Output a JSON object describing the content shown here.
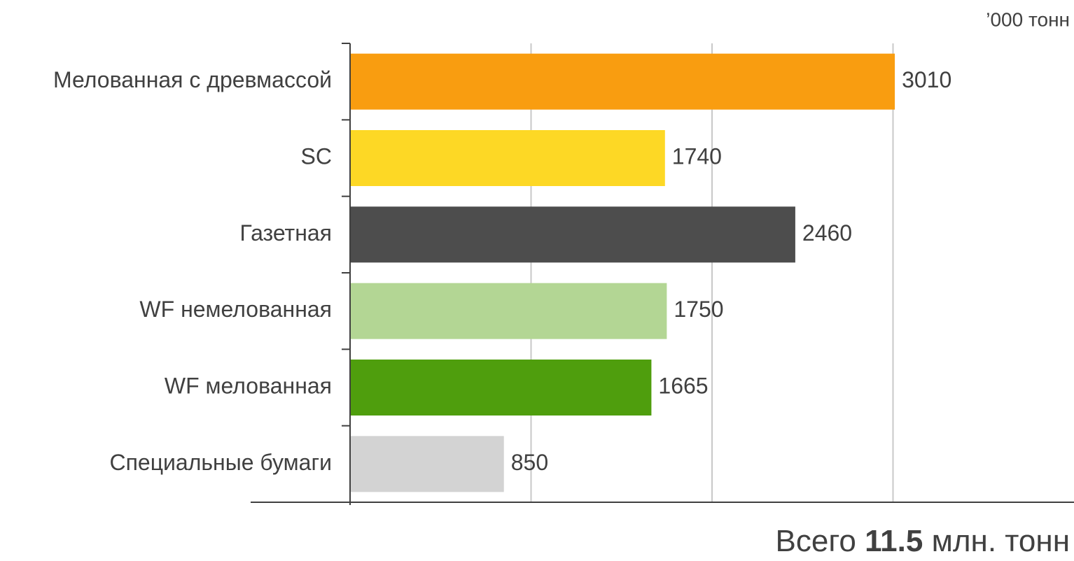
{
  "chart_data": {
    "type": "bar",
    "orientation": "horizontal",
    "unit_label": "’000 тонн",
    "categories": [
      "Мелованная с древмассой",
      "SC",
      "Газетная",
      "WF немелованная",
      "WF мелованная",
      "Специальные бумаги"
    ],
    "values": [
      3010,
      1740,
      2460,
      1750,
      1665,
      850
    ],
    "colors": [
      "#f99d10",
      "#fdd825",
      "#4d4d4d",
      "#b3d694",
      "#4f9e0d",
      "#d3d3d3"
    ],
    "xlim": [
      0,
      4000
    ],
    "xticks": [
      1000,
      2000,
      3000
    ],
    "grid": true,
    "total": {
      "prefix": "Всего",
      "value": "11.5",
      "suffix": "млн. тонн"
    }
  }
}
